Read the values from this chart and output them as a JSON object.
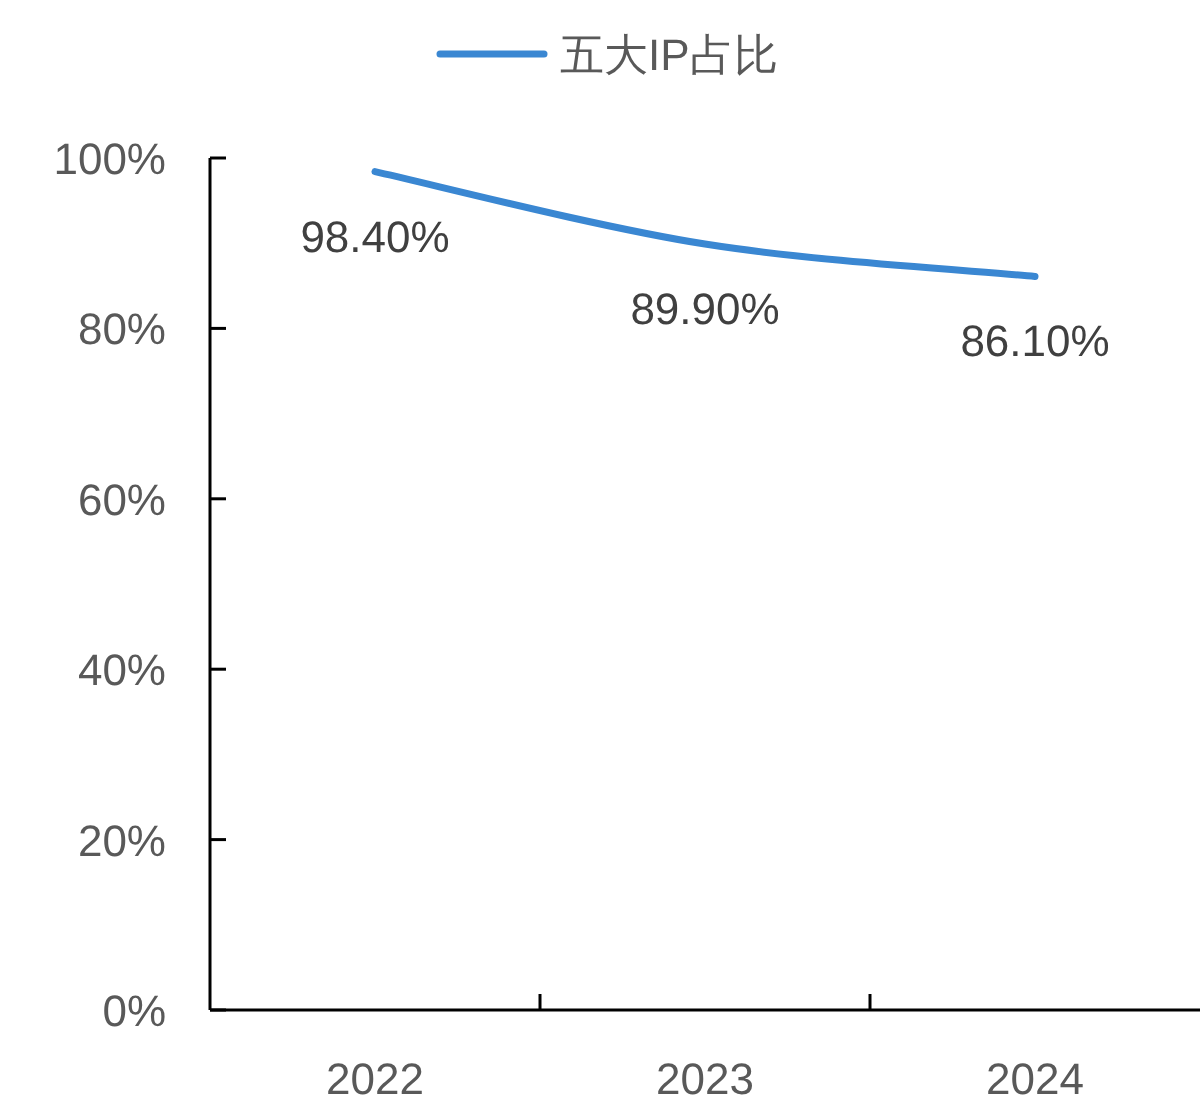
{
  "chart_data": {
    "type": "line",
    "categories": [
      "2022",
      "2023",
      "2024"
    ],
    "series": [
      {
        "name": "五大IP占比",
        "color": "#3a87d2",
        "values": [
          98.4,
          89.9,
          86.1
        ]
      }
    ],
    "value_labels": [
      "98.40%",
      "89.90%",
      "86.10%"
    ],
    "ylim": [
      0,
      100
    ],
    "yticks": [
      {
        "value": 0,
        "label": "0%"
      },
      {
        "value": 20,
        "label": "20%"
      },
      {
        "value": 40,
        "label": "40%"
      },
      {
        "value": 60,
        "label": "60%"
      },
      {
        "value": 80,
        "label": "80%"
      },
      {
        "value": 100,
        "label": "100%"
      }
    ],
    "legend": "top"
  }
}
